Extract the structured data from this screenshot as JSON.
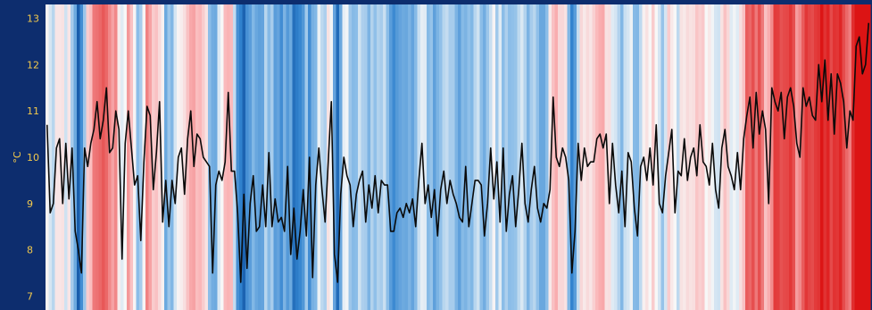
{
  "chart_data": {
    "type": "line",
    "title": "",
    "ylabel": "°C",
    "ylim": [
      6.7,
      13.3
    ],
    "yticks": [
      7,
      8,
      9,
      10,
      11,
      12,
      13
    ],
    "grid": false,
    "background_stripes": true,
    "colors": {
      "frame": "#0d2d6e",
      "line": "#0a0a0a",
      "tick_text": "#f2c94c",
      "cold": "#08306b",
      "neutral": "#f7f7f7",
      "warm": "#67000d"
    },
    "series": [
      {
        "values": [
          10.7,
          8.8,
          9.0,
          10.2,
          10.4,
          9.0,
          10.3,
          9.1,
          10.2,
          8.4,
          8.0,
          7.5,
          10.2,
          9.8,
          10.3,
          10.6,
          11.2,
          10.4,
          10.8,
          11.5,
          10.1,
          10.2,
          11.0,
          10.6,
          7.8,
          10.3,
          11.0,
          10.2,
          9.4,
          9.6,
          8.2,
          9.9,
          11.1,
          10.9,
          9.3,
          10.1,
          11.2,
          8.6,
          9.5,
          8.5,
          9.5,
          9.0,
          10.0,
          10.2,
          9.2,
          10.4,
          11.0,
          9.8,
          10.5,
          10.4,
          10.0,
          9.9,
          9.8,
          7.5,
          9.4,
          9.7,
          9.5,
          9.9,
          11.4,
          9.7,
          9.7,
          8.8,
          7.3,
          9.2,
          7.6,
          9.0,
          9.6,
          8.4,
          8.5,
          9.4,
          8.5,
          10.1,
          8.5,
          9.1,
          8.6,
          8.7,
          8.4,
          9.8,
          7.9,
          8.9,
          7.8,
          8.4,
          9.3,
          8.3,
          10.0,
          7.4,
          9.4,
          10.2,
          9.3,
          8.6,
          9.9,
          11.2,
          7.9,
          7.3,
          9.2,
          10.0,
          9.6,
          9.4,
          8.5,
          9.2,
          9.5,
          9.7,
          8.6,
          9.4,
          8.9,
          9.6,
          8.8,
          9.5,
          9.4,
          9.4,
          8.4,
          8.4,
          8.8,
          8.9,
          8.7,
          9.0,
          8.8,
          9.1,
          8.5,
          9.5,
          10.3,
          9.0,
          9.4,
          8.7,
          9.3,
          8.3,
          9.3,
          9.7,
          9.0,
          9.5,
          9.2,
          9.0,
          8.7,
          8.6,
          9.8,
          8.5,
          9.0,
          9.5,
          9.5,
          9.4,
          8.3,
          9.0,
          10.2,
          9.1,
          9.9,
          8.6,
          10.2,
          8.4,
          9.2,
          9.6,
          8.5,
          9.3,
          10.3,
          9.0,
          8.6,
          9.3,
          9.8,
          8.9,
          8.6,
          9.0,
          8.9,
          9.3,
          11.3,
          10.0,
          9.8,
          10.2,
          10.0,
          9.5,
          7.5,
          8.4,
          10.3,
          9.5,
          10.2,
          9.8,
          9.9,
          9.9,
          10.4,
          10.5,
          10.2,
          10.5,
          9.0,
          10.3,
          9.4,
          8.8,
          9.7,
          8.5,
          10.1,
          9.9,
          8.9,
          8.3,
          9.8,
          10.0,
          9.5,
          10.2,
          9.4,
          10.7,
          9.0,
          8.8,
          9.6,
          10.1,
          10.6,
          8.8,
          9.7,
          9.6,
          10.4,
          9.5,
          10.0,
          10.2,
          9.6,
          10.7,
          9.9,
          9.8,
          9.4,
          10.3,
          9.3,
          8.9,
          10.2,
          10.6,
          9.8,
          9.6,
          9.3,
          10.1,
          9.3,
          10.4,
          10.9,
          11.3,
          10.2,
          11.4,
          10.5,
          11.0,
          10.6,
          9.0,
          11.5,
          11.2,
          11.0,
          11.4,
          10.4,
          11.3,
          11.5,
          11.1,
          10.3,
          10.0,
          11.5,
          11.1,
          11.3,
          10.9,
          10.8,
          12.0,
          11.2,
          12.1,
          10.8,
          11.8,
          10.5,
          11.8,
          11.6,
          11.2,
          10.2,
          11.0,
          10.8,
          12.4,
          12.6,
          11.8,
          12.0,
          12.9
        ]
      }
    ]
  }
}
